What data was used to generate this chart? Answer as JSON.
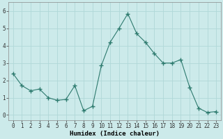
{
  "x": [
    0,
    1,
    2,
    3,
    4,
    5,
    6,
    7,
    8,
    9,
    10,
    11,
    12,
    13,
    14,
    15,
    16,
    17,
    18,
    19,
    20,
    21,
    22,
    23
  ],
  "y": [
    2.4,
    1.7,
    1.4,
    1.5,
    1.0,
    0.85,
    0.9,
    1.7,
    0.25,
    0.5,
    2.85,
    4.2,
    5.0,
    5.85,
    4.7,
    4.2,
    3.55,
    3.0,
    3.0,
    3.2,
    1.6,
    0.4,
    0.15,
    0.2
  ],
  "line_color": "#2d7a6e",
  "marker": "+",
  "marker_size": 4,
  "background_color": "#cceaea",
  "grid_color": "#b0d8d8",
  "xlabel": "Humidex (Indice chaleur)",
  "xlim": [
    -0.5,
    23.5
  ],
  "ylim": [
    -0.3,
    6.5
  ],
  "yticks": [
    0,
    1,
    2,
    3,
    4,
    5,
    6
  ],
  "xtick_labels": [
    "0",
    "1",
    "2",
    "3",
    "4",
    "5",
    "6",
    "7",
    "8",
    "9",
    "10",
    "11",
    "12",
    "13",
    "14",
    "15",
    "16",
    "17",
    "18",
    "19",
    "20",
    "21",
    "22",
    "23"
  ],
  "xlabel_fontsize": 6.5,
  "tick_fontsize": 5.5
}
